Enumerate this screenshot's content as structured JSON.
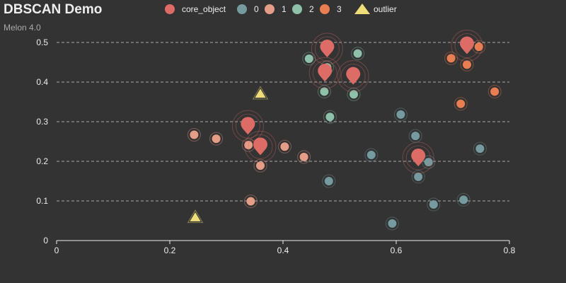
{
  "title": "DBSCAN Demo",
  "subtitle": "Melon 4.0",
  "legend_items": [
    {
      "label": "core_object",
      "color": "#dd6b66",
      "shape": "circle"
    },
    {
      "label": "0",
      "color": "#759aa0",
      "shape": "circle"
    },
    {
      "label": "1",
      "color": "#e69d87",
      "shape": "circle"
    },
    {
      "label": "2",
      "color": "#8dc1a9",
      "shape": "circle"
    },
    {
      "label": "3",
      "color": "#ea7e53",
      "shape": "circle"
    },
    {
      "label": "outlier",
      "color": "#eedd78",
      "shape": "triangle"
    }
  ],
  "chart_data": {
    "type": "scatter",
    "xlim": [
      0,
      0.8
    ],
    "ylim": [
      0,
      0.5
    ],
    "x_ticks": [
      "0",
      "0.2",
      "0.4",
      "0.6",
      "0.8"
    ],
    "y_ticks": [
      "0",
      "0.1",
      "0.2",
      "0.3",
      "0.4",
      "0.5"
    ],
    "grid": "horizontal dashed",
    "legend_placement": "top",
    "series": [
      {
        "name": "0",
        "color": "#759aa0",
        "points": [
          [
            0.481,
            0.15
          ],
          [
            0.556,
            0.216
          ],
          [
            0.593,
            0.043
          ],
          [
            0.608,
            0.318
          ],
          [
            0.634,
            0.264
          ],
          [
            0.639,
            0.161
          ],
          [
            0.657,
            0.198
          ],
          [
            0.666,
            0.091
          ],
          [
            0.719,
            0.103
          ],
          [
            0.748,
            0.232
          ]
        ]
      },
      {
        "name": "1",
        "color": "#e69d87",
        "points": [
          [
            0.243,
            0.267
          ],
          [
            0.282,
            0.257
          ],
          [
            0.339,
            0.241
          ],
          [
            0.343,
            0.099
          ],
          [
            0.36,
            0.189
          ],
          [
            0.403,
            0.237
          ],
          [
            0.437,
            0.211
          ]
        ]
      },
      {
        "name": "2",
        "color": "#8dc1a9",
        "points": [
          [
            0.446,
            0.459
          ],
          [
            0.473,
            0.376
          ],
          [
            0.478,
            0.437
          ],
          [
            0.483,
            0.312
          ],
          [
            0.525,
            0.369
          ],
          [
            0.532,
            0.472
          ]
        ]
      },
      {
        "name": "3",
        "color": "#ea7e53",
        "points": [
          [
            0.697,
            0.46
          ],
          [
            0.714,
            0.345
          ],
          [
            0.725,
            0.444
          ],
          [
            0.746,
            0.489
          ],
          [
            0.774,
            0.376
          ]
        ]
      },
      {
        "name": "outlier",
        "color": "#eedd78",
        "points": [
          [
            0.245,
            0.057
          ],
          [
            0.36,
            0.369
          ]
        ]
      },
      {
        "name": "core_object",
        "color": "#dd6b66",
        "points": [
          [
            0.338,
            0.271
          ],
          [
            0.36,
            0.219
          ],
          [
            0.474,
            0.405
          ],
          [
            0.478,
            0.466
          ],
          [
            0.524,
            0.397
          ],
          [
            0.639,
            0.191
          ],
          [
            0.725,
            0.474
          ]
        ]
      }
    ]
  }
}
